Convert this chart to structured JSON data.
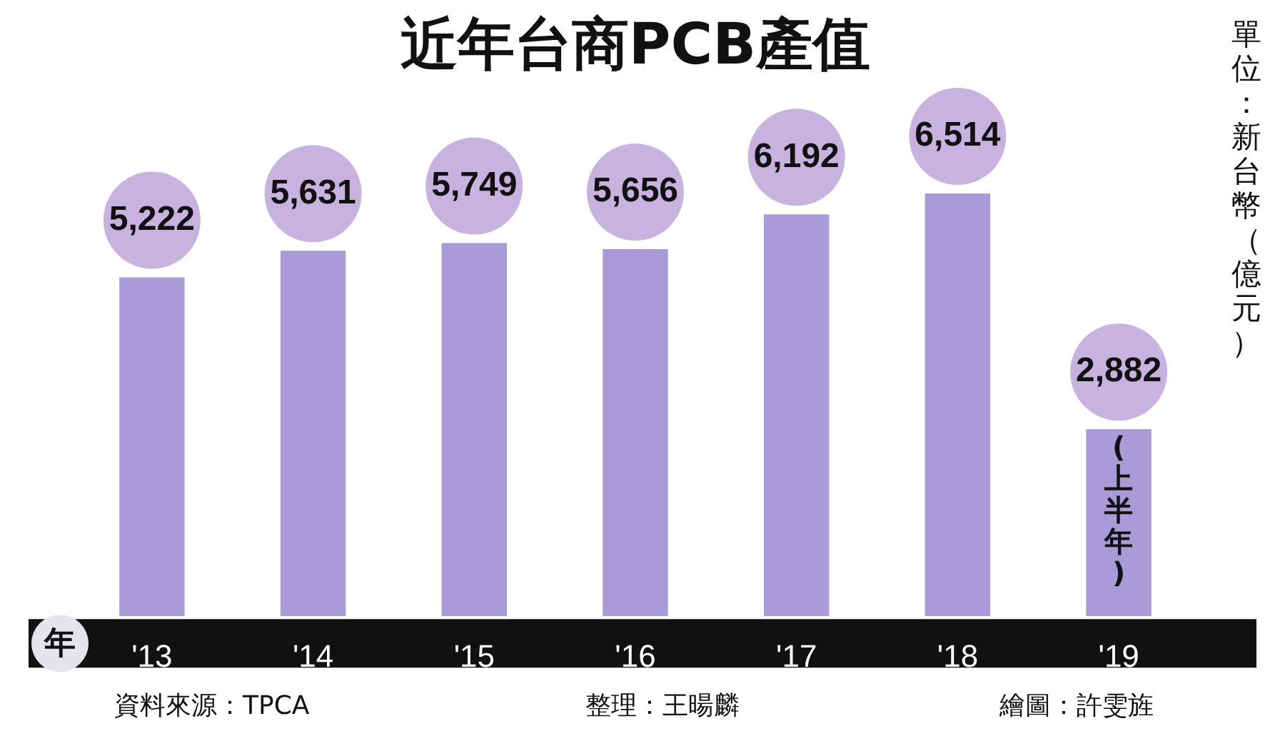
{
  "chart_data": {
    "type": "bar",
    "title": "近年台商PCB產值",
    "xlabel": "年",
    "ylabel": "單位：新台幣（億元）",
    "categories": [
      "'13",
      "'14",
      "'15",
      "'16",
      "'17",
      "'18",
      "'19"
    ],
    "values": [
      5222,
      5631,
      5749,
      5656,
      6192,
      6514,
      2882
    ],
    "color": "#a99bd8",
    "value_labels": [
      "5,222",
      "5,631",
      "5,749",
      "5,656",
      "6,192",
      "6,514",
      "2,882"
    ],
    "annotations": [
      "(上半年)",
      "資料來源：TPCA",
      "整理：王暘麟",
      "繪圖：許雯旌"
    ]
  }
}
